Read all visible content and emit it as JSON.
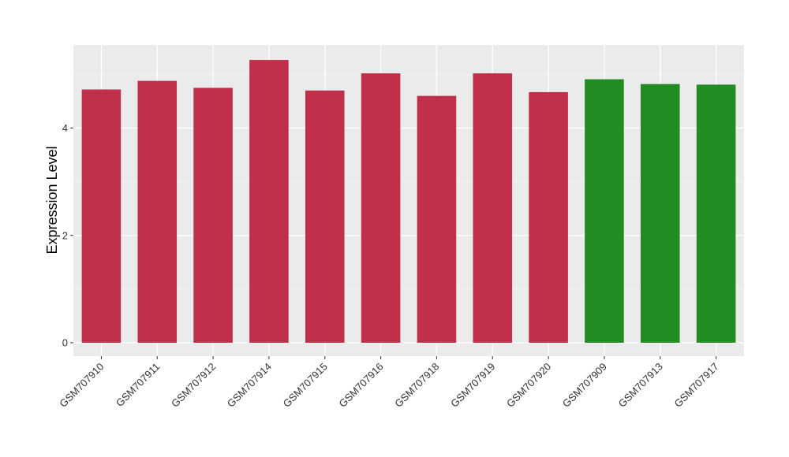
{
  "chart_data": {
    "type": "bar",
    "title": "",
    "xlabel": "",
    "ylabel": "Expression Level",
    "ylim": [
      -0.25,
      5.55
    ],
    "yticks": [
      0,
      2,
      4
    ],
    "grid": true,
    "legend": "none",
    "panel_background": "#ebebeb",
    "categories": [
      "GSM707910",
      "GSM707911",
      "GSM707912",
      "GSM707914",
      "GSM707915",
      "GSM707916",
      "GSM707918",
      "GSM707919",
      "GSM707920",
      "GSM707909",
      "GSM707913",
      "GSM707917"
    ],
    "values": [
      4.72,
      4.88,
      4.75,
      5.27,
      4.7,
      5.02,
      4.6,
      5.02,
      4.67,
      4.91,
      4.82,
      4.81
    ],
    "colors": [
      "#c1304a",
      "#c1304a",
      "#c1304a",
      "#c1304a",
      "#c1304a",
      "#c1304a",
      "#c1304a",
      "#c1304a",
      "#c1304a",
      "#228b22",
      "#228b22",
      "#228b22"
    ]
  }
}
